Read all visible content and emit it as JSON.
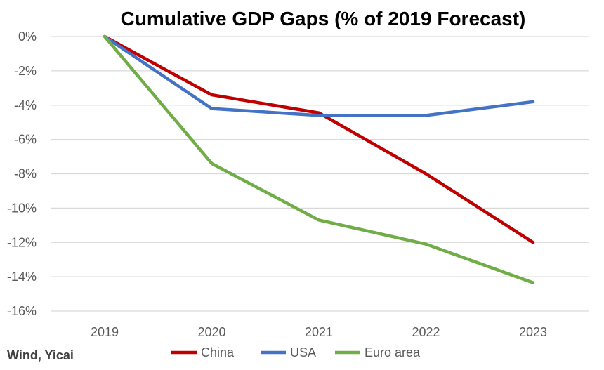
{
  "chart_data": {
    "type": "line",
    "title": "Cumulative GDP Gaps (% of 2019 Forecast)",
    "xlabel": "",
    "ylabel": "",
    "categories": [
      "2019",
      "2020",
      "2021",
      "2022",
      "2023"
    ],
    "ylim": [
      -16,
      0
    ],
    "y_ticks": [
      0,
      -2,
      -4,
      -6,
      -8,
      -10,
      -12,
      -14,
      -16
    ],
    "y_tick_labels": [
      "0%",
      "-2%",
      "-4%",
      "-6%",
      "-8%",
      "-10%",
      "-12%",
      "-14%",
      "-16%"
    ],
    "grid": true,
    "legend_position": "bottom",
    "series": [
      {
        "name": "China",
        "color": "#C00000",
        "values": [
          0,
          -3.4,
          -4.45,
          -8.0,
          -12.0
        ]
      },
      {
        "name": "USA",
        "color": "#4472C4",
        "values": [
          0,
          -4.2,
          -4.6,
          -4.6,
          -3.8
        ]
      },
      {
        "name": "Euro area",
        "color": "#70AD47",
        "values": [
          0,
          -7.4,
          -10.7,
          -12.1,
          -14.35
        ]
      }
    ],
    "source_note": "Wind, Yicai"
  }
}
